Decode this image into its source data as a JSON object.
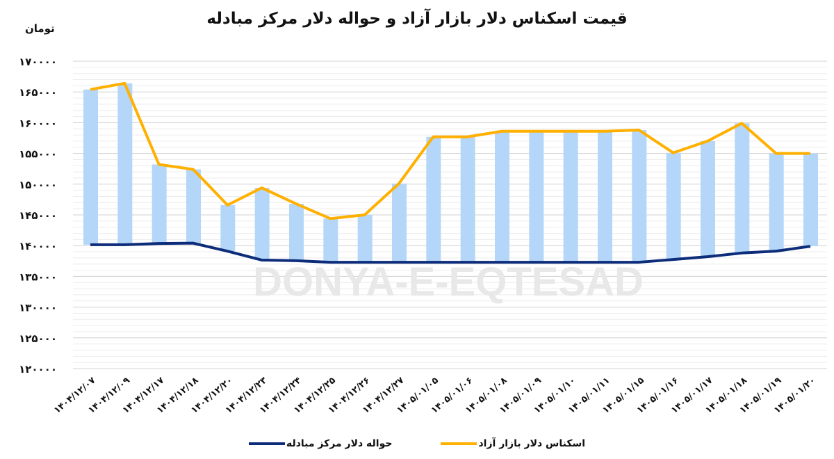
{
  "chart_data": {
    "type": "line",
    "title": "قیمت اسکناس دلار بازار آزاد و حواله دلار مرکز مبادله",
    "ylabel": "تومان",
    "xlabel": "",
    "ylim": [
      120000,
      170000
    ],
    "yticks": [
      170000,
      165000,
      160000,
      155000,
      150000,
      145000,
      140000,
      135000,
      130000,
      125000,
      120000
    ],
    "ytick_labels": [
      "۱۷۰۰۰۰",
      "۱۶۵۰۰۰",
      "۱۶۰۰۰۰",
      "۱۵۵۰۰۰",
      "۱۵۰۰۰۰",
      "۱۴۵۰۰۰",
      "۱۴۰۰۰۰",
      "۱۳۵۰۰۰",
      "۱۳۰۰۰۰",
      "۱۲۵۰۰۰",
      "۱۲۰۰۰۰"
    ],
    "grid": true,
    "legend_position": "bottom",
    "up_down_bars": true,
    "categories": [
      "۱۴۰۴/۱۲/۰۷",
      "۱۴۰۴/۱۲/۰۹",
      "۱۴۰۴/۱۲/۱۷",
      "۱۴۰۴/۱۲/۱۸",
      "۱۴۰۴/۱۲/۲۰",
      "۱۴۰۴/۱۲/۲۳",
      "۱۴۰۴/۱۲/۲۴",
      "۱۴۰۴/۱۲/۲۵",
      "۱۴۰۴/۱۲/۲۶",
      "۱۴۰۴/۱۲/۲۷",
      "۱۴۰۵/۰۱/۰۵",
      "۱۴۰۵/۰۱/۰۶",
      "۱۴۰۵/۰۱/۰۸",
      "۱۴۰۵/۰۱/۰۹",
      "۱۴۰۵/۰۱/۱۰",
      "۱۴۰۵/۰۱/۱۱",
      "۱۴۰۵/۰۱/۱۵",
      "۱۴۰۵/۰۱/۱۶",
      "۱۴۰۵/۰۱/۱۷",
      "۱۴۰۵/۰۱/۱۸",
      "۱۴۰۵/۰۱/۱۹",
      "۱۴۰۵/۰۱/۲۰"
    ],
    "series": [
      {
        "name": "اسکناس دلار بازار آزاد",
        "color": "#FFB000",
        "values": [
          165400,
          166400,
          153200,
          152400,
          146600,
          149400,
          146800,
          144400,
          145000,
          150100,
          157700,
          157700,
          158600,
          158600,
          158600,
          158600,
          158800,
          155100,
          157000,
          159900,
          155000,
          155000
        ]
      },
      {
        "name": "حواله دلار مرکز مبادله",
        "color": "#0D2D7A",
        "values": [
          140150,
          140150,
          140350,
          140400,
          139100,
          137650,
          137550,
          137300,
          137300,
          137300,
          137300,
          137300,
          137300,
          137300,
          137300,
          137300,
          137300,
          137750,
          138200,
          138800,
          139100,
          139900
        ]
      }
    ],
    "bar_color": "#B4D6F8"
  },
  "watermark": {
    "latin": "DONYA-E-EQTESAD"
  },
  "legend": [
    {
      "label": "اسکناس دلار بازار آزاد",
      "color": "#FFB000"
    },
    {
      "label": "حواله دلار مرکز مبادله",
      "color": "#0D2D7A"
    }
  ]
}
